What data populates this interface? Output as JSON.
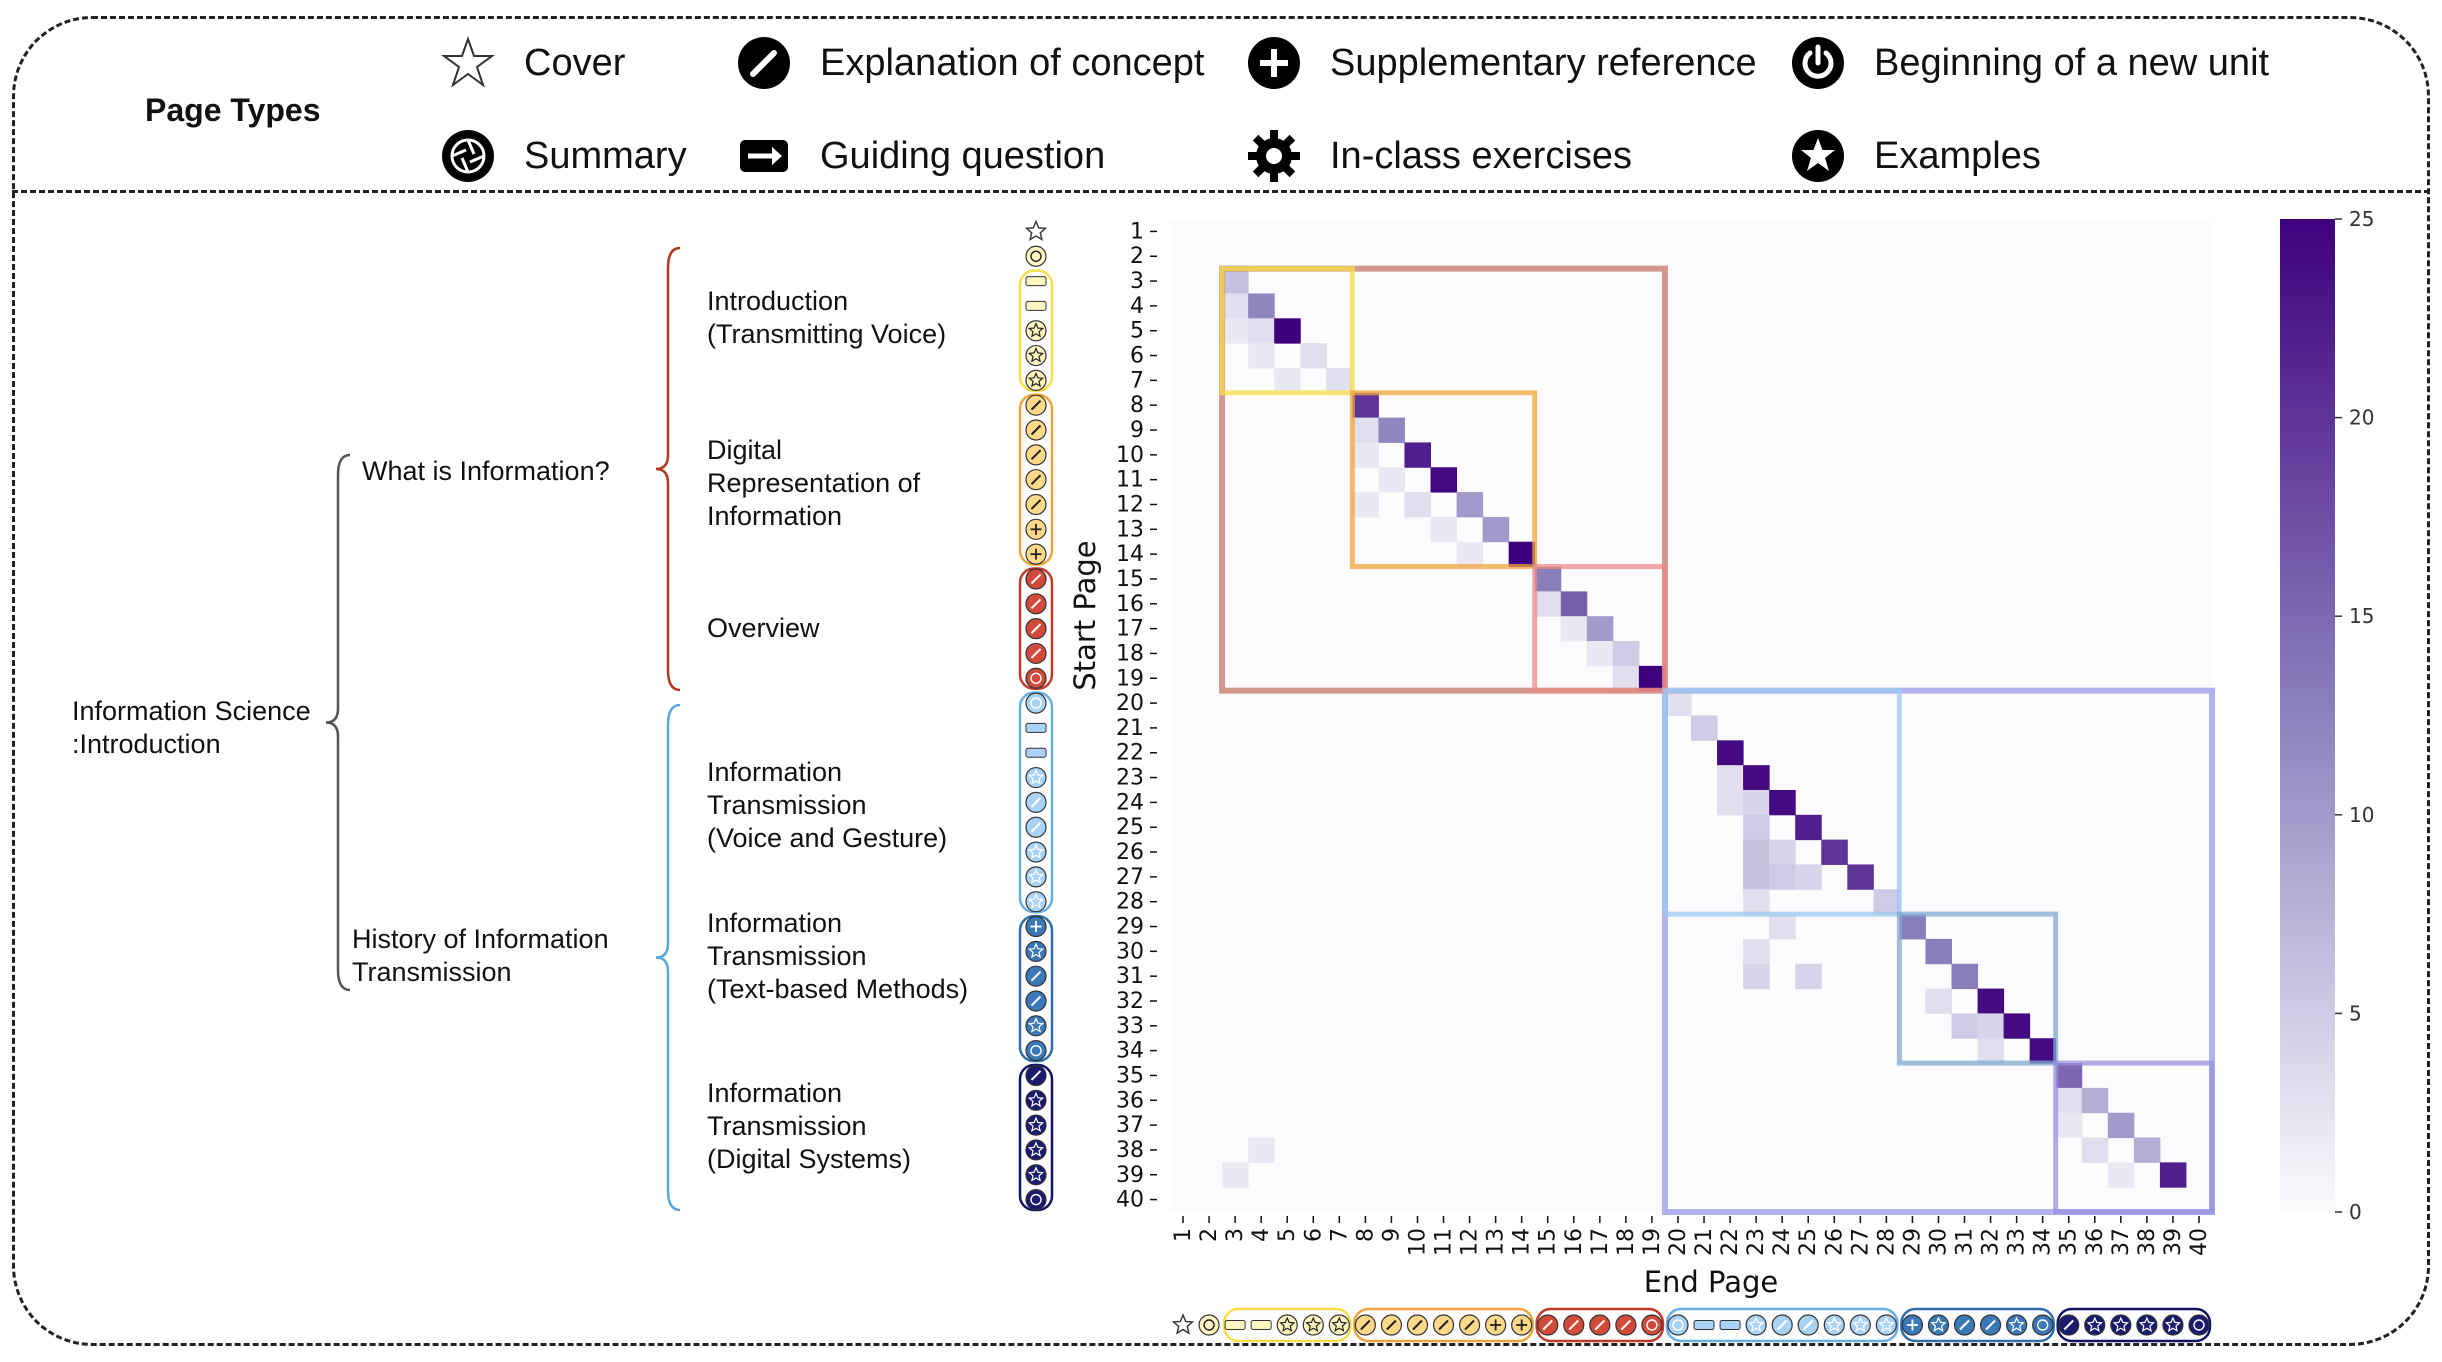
{
  "legend": {
    "title": "Page Types",
    "items": [
      {
        "key": "cover",
        "label": "Cover",
        "icon": "outline-star-icon"
      },
      {
        "key": "concept",
        "label": "Explanation of concept",
        "icon": "pencil-circle-icon"
      },
      {
        "key": "supp",
        "label": "Supplementary reference",
        "icon": "plus-circle-icon"
      },
      {
        "key": "unit",
        "label": "Beginning of a new unit",
        "icon": "power-circle-icon"
      },
      {
        "key": "summary",
        "label": "Summary",
        "icon": "aperture-circle-icon"
      },
      {
        "key": "guiding",
        "label": "Guiding question",
        "icon": "arrow-box-icon"
      },
      {
        "key": "exercise",
        "label": "In-class exercises",
        "icon": "gear-icon"
      },
      {
        "key": "example",
        "label": "Examples",
        "icon": "star-circle-icon"
      }
    ]
  },
  "tree": {
    "root": "Information Science\n:Introduction",
    "level1": [
      "What is Information?",
      "History of Information\nTransmission"
    ],
    "level2": [
      "Introduction\n(Transmitting Voice)",
      "Digital\nRepresentation of\nInformation",
      "Overview",
      "Information\nTransmission\n(Voice and Gesture)",
      "Information\nTransmission\n(Text-based Methods)",
      "Information\nTransmission\n(Digital Systems)"
    ]
  },
  "colors": {
    "sections": [
      "#f6e04a",
      "#f0a53b",
      "#c0392b",
      "#6aaee8",
      "#2f6fae",
      "#141466"
    ],
    "section_fill": [
      "#fff6c2",
      "#ffd88a",
      "#d24a3a",
      "#a9d3f6",
      "#3a78b8",
      "#1a1a6e"
    ],
    "brace_top": "#b03a1e",
    "brace_bottom": "#5aa6e0",
    "box_wrap_top": "#c97e74",
    "box_wrap_bottom": "#9ea0ea",
    "cmap_low": "#fcfbfd",
    "cmap_high": "#3f007d"
  },
  "page_types": [
    "cover",
    "unit",
    "guiding",
    "guiding",
    "example",
    "example",
    "example",
    "concept",
    "concept",
    "concept",
    "concept",
    "concept",
    "supp",
    "supp",
    "concept",
    "concept",
    "concept",
    "concept",
    "summary",
    "unit",
    "guiding",
    "guiding",
    "example",
    "concept",
    "concept",
    "example",
    "example",
    "example",
    "supp",
    "example",
    "concept",
    "concept",
    "example",
    "summary",
    "concept",
    "example",
    "example",
    "example",
    "exercise",
    "summary"
  ],
  "chart_data": {
    "type": "heatmap",
    "title": "",
    "xlabel": "End Page",
    "ylabel": "Start Page",
    "x_ticks": [
      "1",
      "2",
      "3",
      "4",
      "5",
      "6",
      "7",
      "8",
      "9",
      "10",
      "11",
      "12",
      "13",
      "14",
      "15",
      "16",
      "17",
      "18",
      "19",
      "20",
      "21",
      "22",
      "23",
      "24",
      "25",
      "26",
      "27",
      "28",
      "29",
      "30",
      "31",
      "32",
      "33",
      "34",
      "35",
      "36",
      "37",
      "38",
      "39",
      "40"
    ],
    "y_ticks": [
      "1",
      "2",
      "3",
      "4",
      "5",
      "6",
      "7",
      "8",
      "9",
      "10",
      "11",
      "12",
      "13",
      "14",
      "15",
      "16",
      "17",
      "18",
      "19",
      "20",
      "21",
      "22",
      "23",
      "24",
      "25",
      "26",
      "27",
      "28",
      "29",
      "30",
      "31",
      "32",
      "33",
      "34",
      "35",
      "36",
      "37",
      "38",
      "39",
      "40"
    ],
    "colorbar": {
      "min": 0,
      "max": 25,
      "ticks": [
        "0",
        "5",
        "10",
        "15",
        "20",
        "25"
      ]
    },
    "diagonal_values": [
      0,
      0,
      6,
      12,
      25,
      3,
      3,
      20,
      12,
      22,
      24,
      10,
      10,
      25,
      13,
      16,
      10,
      5,
      25,
      3,
      5,
      24,
      24,
      24,
      22,
      20,
      20,
      5,
      13,
      13,
      13,
      24,
      24,
      24,
      15,
      8,
      10,
      8,
      22,
      0
    ],
    "off_diagonal": [
      {
        "row": 4,
        "col": 3,
        "value": 3
      },
      {
        "row": 5,
        "col": 3,
        "value": 2
      },
      {
        "row": 5,
        "col": 4,
        "value": 3
      },
      {
        "row": 6,
        "col": 4,
        "value": 2
      },
      {
        "row": 7,
        "col": 5,
        "value": 2
      },
      {
        "row": 9,
        "col": 8,
        "value": 3
      },
      {
        "row": 10,
        "col": 8,
        "value": 2
      },
      {
        "row": 11,
        "col": 9,
        "value": 2
      },
      {
        "row": 12,
        "col": 8,
        "value": 2
      },
      {
        "row": 12,
        "col": 10,
        "value": 3
      },
      {
        "row": 13,
        "col": 11,
        "value": 2
      },
      {
        "row": 14,
        "col": 12,
        "value": 2
      },
      {
        "row": 16,
        "col": 15,
        "value": 3
      },
      {
        "row": 17,
        "col": 16,
        "value": 2
      },
      {
        "row": 18,
        "col": 17,
        "value": 2
      },
      {
        "row": 19,
        "col": 18,
        "value": 3
      },
      {
        "row": 23,
        "col": 22,
        "value": 3
      },
      {
        "row": 24,
        "col": 22,
        "value": 3
      },
      {
        "row": 24,
        "col": 23,
        "value": 4
      },
      {
        "row": 25,
        "col": 23,
        "value": 5
      },
      {
        "row": 26,
        "col": 23,
        "value": 6
      },
      {
        "row": 26,
        "col": 24,
        "value": 4
      },
      {
        "row": 27,
        "col": 23,
        "value": 6
      },
      {
        "row": 27,
        "col": 24,
        "value": 5
      },
      {
        "row": 27,
        "col": 25,
        "value": 4
      },
      {
        "row": 28,
        "col": 23,
        "value": 3
      },
      {
        "row": 29,
        "col": 24,
        "value": 3
      },
      {
        "row": 30,
        "col": 23,
        "value": 3
      },
      {
        "row": 31,
        "col": 23,
        "value": 4
      },
      {
        "row": 31,
        "col": 25,
        "value": 4
      },
      {
        "row": 32,
        "col": 30,
        "value": 3
      },
      {
        "row": 33,
        "col": 31,
        "value": 5
      },
      {
        "row": 33,
        "col": 32,
        "value": 4
      },
      {
        "row": 34,
        "col": 32,
        "value": 3
      },
      {
        "row": 36,
        "col": 35,
        "value": 3
      },
      {
        "row": 37,
        "col": 35,
        "value": 2
      },
      {
        "row": 38,
        "col": 36,
        "value": 3
      },
      {
        "row": 39,
        "col": 37,
        "value": 2
      },
      {
        "row": 39,
        "col": 3,
        "value": 2
      },
      {
        "row": 38,
        "col": 4,
        "value": 2
      }
    ],
    "segments": [
      {
        "start": 3,
        "end": 7,
        "color": "#f6e04a"
      },
      {
        "start": 8,
        "end": 14,
        "color": "#f0a53b"
      },
      {
        "start": 15,
        "end": 19,
        "color": "#e98b86"
      },
      {
        "start": 20,
        "end": 28,
        "color": "#9ccaf0"
      },
      {
        "start": 29,
        "end": 34,
        "color": "#7fa9cf"
      },
      {
        "start": 35,
        "end": 40,
        "color": "#9b8fe0"
      }
    ],
    "groups": [
      {
        "start": 3,
        "end": 19,
        "color": "#c97e74"
      },
      {
        "start": 20,
        "end": 40,
        "color": "#9ea0ea"
      }
    ]
  }
}
